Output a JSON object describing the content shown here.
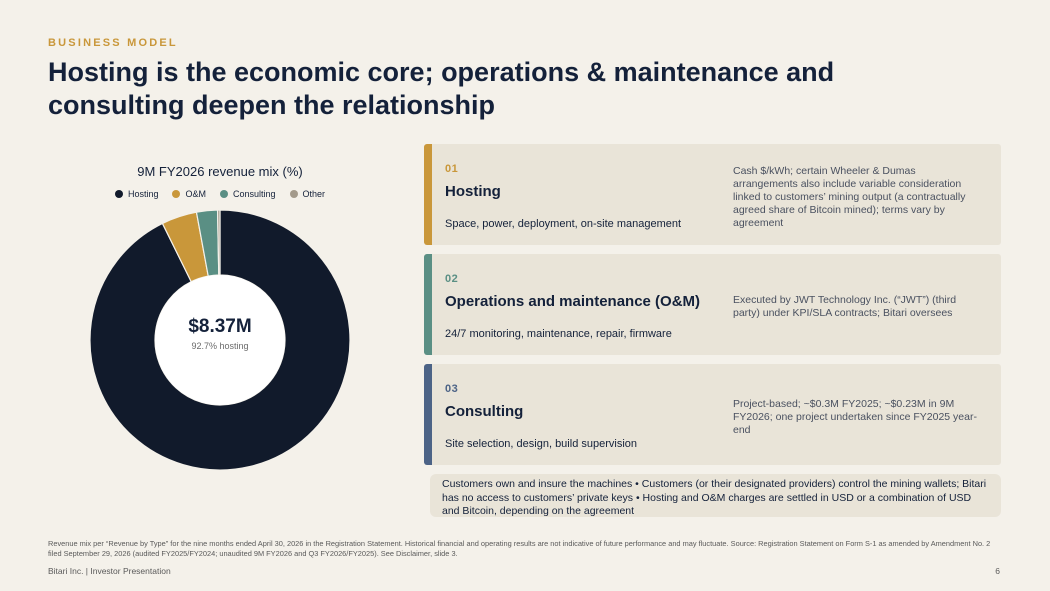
{
  "header": {
    "eyebrow": "BUSINESS MODEL",
    "title": "Hosting is the economic core; operations & maintenance and consulting deepen the relationship"
  },
  "chart_data": {
    "type": "pie",
    "title": "9M FY2026 revenue mix (%)",
    "legend_position": "top",
    "categories": [
      "Hosting",
      "O&M",
      "Consulting",
      "Other"
    ],
    "values": [
      92.7,
      4.4,
      2.6,
      0.3
    ],
    "colors": [
      "#111a2b",
      "#c9973a",
      "#5a8f84",
      "#a39a8b"
    ],
    "center_value": "$8.37M",
    "center_label": "92.7% hosting"
  },
  "cards": [
    {
      "num": "01",
      "name": "Hosting",
      "desc": "Space, power, deployment, on-site management",
      "note": "Cash $/kWh; certain Wheeler & Dumas arrangements also include variable consideration linked to customers’ mining output (a contractually agreed share of Bitcoin mined); terms vary by agreement",
      "color": "#c9973a"
    },
    {
      "num": "02",
      "name": "Operations and maintenance (O&M)",
      "desc": "24/7 monitoring, maintenance, repair, firmware",
      "note": "Executed by JWT Technology Inc. (“JWT”) (third party) under KPI/SLA contracts; Bitari oversees",
      "color": "#5a8f84"
    },
    {
      "num": "03",
      "name": "Consulting",
      "desc": "Site selection, design, build supervision",
      "note": "Project-based; ~$0.3M FY2025; ~$0.23M in 9M FY2026; one project undertaken since FY2025 year-end",
      "color": "#4c6386"
    }
  ],
  "summary_box": "Customers own and insure the machines • Customers (or their designated providers) control the mining wallets; Bitari has no access to customers’ private keys • Hosting and O&M charges are settled in USD or a combination of USD and Bitcoin, depending on the agreement",
  "footnote": "Revenue mix per “Revenue by Type” for the nine months ended April 30, 2026 in the Registration Statement. Historical financial and operating results are not indicative of future performance and may fluctuate. Source: Registration Statement on Form S-1 as amended by Amendment No. 2 filed September 29, 2026 (audited FY2025/FY2024; unaudited 9M FY2026 and Q3 FY2026/FY2025). See Disclaimer, slide 3.",
  "footer": {
    "brand": "Bitari Inc.  |  Investor Presentation",
    "page": "6"
  }
}
